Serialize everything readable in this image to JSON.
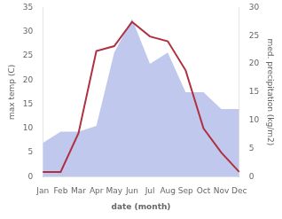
{
  "chart_data": {
    "type": "line",
    "xlabel": "date (month)",
    "ylabel": "max temp (C)",
    "y2label": "med. precipitation (kg/m2)",
    "categories": [
      "Jan",
      "Feb",
      "Mar",
      "Apr",
      "May",
      "Jun",
      "Jul",
      "Aug",
      "Sep",
      "Oct",
      "Nov",
      "Dec"
    ],
    "series": [
      {
        "type": "area",
        "axis": "y2",
        "color": "#c0c8ee",
        "values": [
          6,
          8,
          8,
          9,
          22,
          28,
          20,
          22,
          15,
          15,
          12,
          12
        ]
      },
      {
        "type": "line",
        "axis": "y",
        "color": "#b03040",
        "values": [
          1,
          1,
          9,
          26,
          27,
          32,
          29,
          28,
          22,
          10,
          5,
          1
        ]
      }
    ],
    "ylim": [
      0,
      35
    ],
    "yticks": [
      0,
      5,
      10,
      15,
      20,
      25,
      30,
      35
    ],
    "y2lim": [
      0,
      30
    ],
    "y2ticks": [
      0,
      5,
      10,
      15,
      20,
      25,
      30
    ],
    "grid": false
  }
}
